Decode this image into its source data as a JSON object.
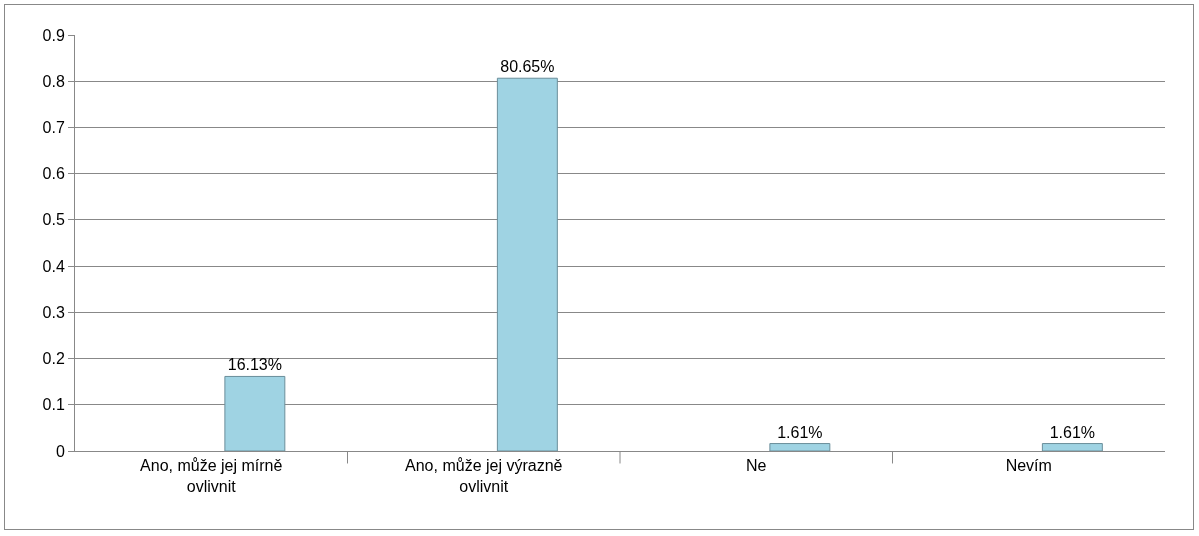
{
  "chart_data": {
    "type": "bar",
    "categories": [
      "Ano, může jej mírně ovlivnit",
      "Ano, může jej výrazně ovlivnit",
      "Ne",
      "Nevím"
    ],
    "values": [
      0.1613,
      0.8065,
      0.0161,
      0.0161
    ],
    "value_labels": [
      "16.13%",
      "80.65%",
      "1.61%",
      "1.61%"
    ],
    "color": "#9fd3e3",
    "ylim": [
      0,
      0.9
    ],
    "yticks": [
      0,
      0.1,
      0.2,
      0.3,
      0.4,
      0.5,
      0.6,
      0.7,
      0.8,
      0.9
    ],
    "grid": "y",
    "legend": false
  }
}
